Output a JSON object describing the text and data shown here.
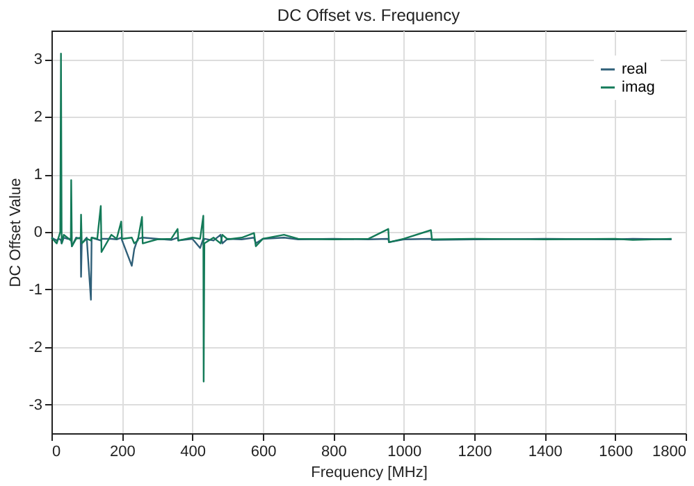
{
  "chart_data": {
    "type": "line",
    "title": "DC Offset vs. Frequency",
    "xlabel": "Frequency [MHz]",
    "ylabel": "DC Offset Value",
    "x": [
      0,
      15,
      20,
      25,
      27,
      29,
      35,
      45,
      55,
      56,
      58,
      70,
      83,
      84,
      86,
      100,
      112,
      114,
      130,
      140,
      142,
      170,
      185,
      198,
      200,
      228,
      235,
      245,
      257,
      259,
      300,
      340,
      358,
      360,
      400,
      422,
      431,
      432,
      434,
      460,
      480,
      485,
      500,
      540,
      575,
      580,
      600,
      660,
      700,
      800,
      900,
      956,
      958,
      1000,
      1077,
      1080,
      1200,
      1400,
      1600,
      1650,
      1760
    ],
    "series": [
      {
        "name": "real",
        "color": "#2f5f78",
        "values": [
          -0.1,
          -0.15,
          -0.12,
          -0.13,
          -0.15,
          -0.2,
          -0.1,
          -0.12,
          -0.12,
          -0.15,
          -0.25,
          -0.1,
          -0.12,
          -0.78,
          -0.2,
          -0.1,
          -1.18,
          -0.1,
          -0.13,
          -0.15,
          -0.12,
          -0.12,
          -0.13,
          -0.1,
          -0.14,
          -0.59,
          -0.3,
          -0.12,
          -0.1,
          -0.1,
          -0.12,
          -0.14,
          -0.1,
          -0.15,
          -0.12,
          -0.28,
          -0.12,
          -0.15,
          -0.12,
          -0.15,
          -0.05,
          -0.2,
          -0.12,
          -0.13,
          -0.1,
          -0.2,
          -0.12,
          -0.1,
          -0.13,
          -0.12,
          -0.13,
          -0.12,
          -0.18,
          -0.13,
          -0.12,
          -0.14,
          -0.13,
          -0.12,
          -0.13,
          -0.12,
          -0.13
        ]
      },
      {
        "name": "imag",
        "color": "#137a58",
        "values": [
          -0.1,
          -0.2,
          -0.1,
          0.0,
          3.1,
          -0.2,
          -0.05,
          -0.1,
          -0.15,
          0.9,
          -0.25,
          -0.12,
          -0.1,
          0.3,
          -0.2,
          -0.12,
          -0.15,
          -0.1,
          -0.12,
          0.45,
          -0.35,
          -0.05,
          -0.12,
          0.18,
          -0.12,
          -0.1,
          -0.2,
          -0.15,
          0.26,
          -0.2,
          -0.13,
          -0.12,
          0.05,
          -0.15,
          -0.1,
          -0.12,
          0.28,
          -2.6,
          -0.2,
          -0.1,
          -0.2,
          -0.05,
          -0.13,
          -0.1,
          -0.02,
          -0.25,
          -0.12,
          -0.05,
          -0.12,
          -0.13,
          -0.12,
          0.05,
          -0.18,
          -0.12,
          0.03,
          -0.13,
          -0.12,
          -0.13,
          -0.12,
          -0.14,
          -0.12
        ]
      }
    ],
    "xlim": [
      0,
      1800
    ],
    "xticks": [
      0,
      200,
      400,
      600,
      800,
      1000,
      1200,
      1400,
      1600,
      1800
    ],
    "ylim": [
      -3.5,
      3.5
    ],
    "yticks": [
      -3,
      -2,
      -1,
      0,
      1,
      2,
      3
    ],
    "grid": true,
    "legend": "top right",
    "marker": "none",
    "line_style": "solid"
  }
}
